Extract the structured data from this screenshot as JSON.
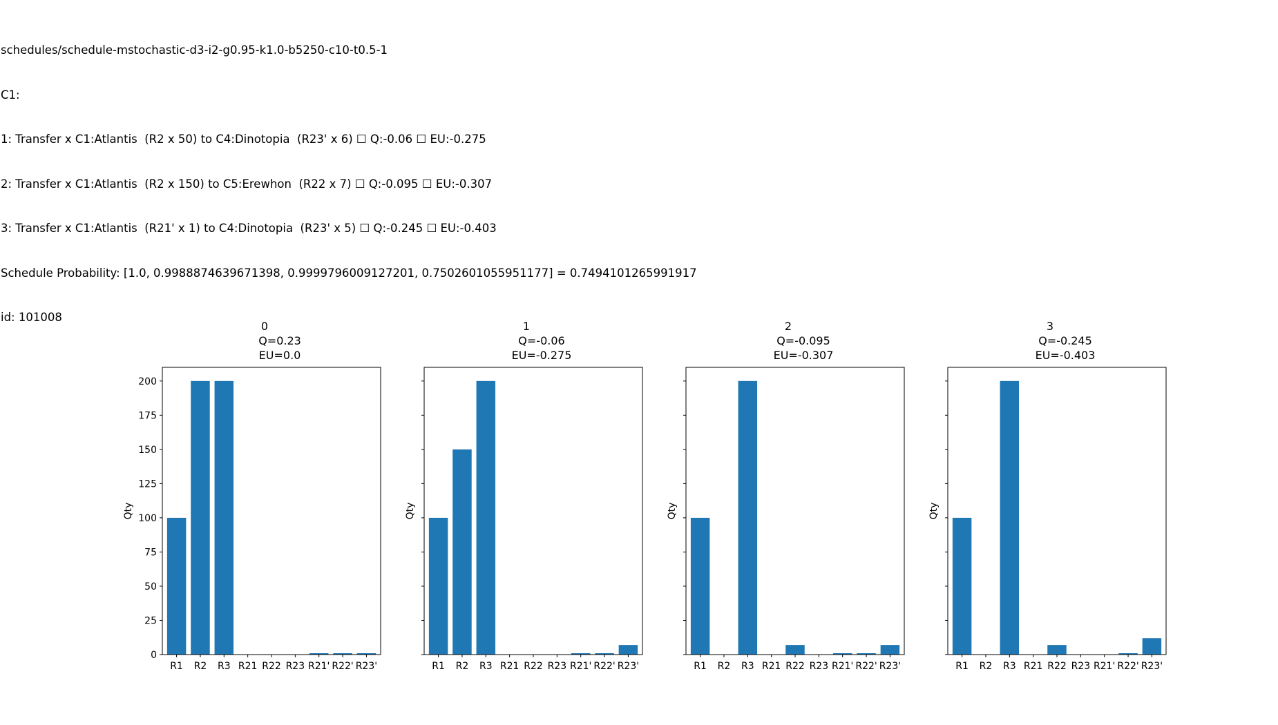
{
  "header": {
    "lines": [
      "schedules/schedule-mstochastic-d3-i2-g0.95-k1.0-b5250-c10-t0.5-1",
      "C1:",
      "1: Transfer x C1:Atlantis  (R2 x 50) to C4:Dinotopia  (R23' x 6) ☐ Q:-0.06 ☐ EU:-0.275",
      "2: Transfer x C1:Atlantis  (R2 x 150) to C5:Erewhon  (R22 x 7) ☐ Q:-0.095 ☐ EU:-0.307",
      "3: Transfer x C1:Atlantis  (R21' x 1) to C4:Dinotopia  (R23' x 5) ☐ Q:-0.245 ☐ EU:-0.403",
      "Schedule Probability: [1.0, 0.9988874639671398, 0.9999796009127201, 0.7502601055951177] = 0.7494101265991917",
      "id: 101008"
    ]
  },
  "colors": {
    "bar": "#1f77b4",
    "axis": "#000000",
    "background": "#ffffff"
  },
  "chart_data": [
    {
      "type": "bar",
      "title": "0",
      "q_label": "Q=0.23",
      "eu_label": "EU=0.0",
      "categories": [
        "R1",
        "R2",
        "R3",
        "R21",
        "R22",
        "R23",
        "R21'",
        "R22'",
        "R23'"
      ],
      "values": [
        100,
        200,
        200,
        0,
        0,
        0,
        1,
        1,
        1
      ],
      "xlabel": "",
      "ylabel": "Qty",
      "ylim": [
        0,
        210
      ],
      "yticks": [
        0,
        25,
        50,
        75,
        100,
        125,
        150,
        175,
        200
      ],
      "show_ytick_labels": true,
      "grid": false
    },
    {
      "type": "bar",
      "title": "1",
      "q_label": "Q=-0.06",
      "eu_label": "EU=-0.275",
      "categories": [
        "R1",
        "R2",
        "R3",
        "R21",
        "R22",
        "R23",
        "R21'",
        "R22'",
        "R23'"
      ],
      "values": [
        100,
        150,
        200,
        0,
        0,
        0,
        1,
        1,
        7
      ],
      "xlabel": "",
      "ylabel": "Qty",
      "ylim": [
        0,
        210
      ],
      "yticks": [
        0,
        25,
        50,
        75,
        100,
        125,
        150,
        175,
        200
      ],
      "show_ytick_labels": false,
      "grid": false
    },
    {
      "type": "bar",
      "title": "2",
      "q_label": "Q=-0.095",
      "eu_label": "EU=-0.307",
      "categories": [
        "R1",
        "R2",
        "R3",
        "R21",
        "R22",
        "R23",
        "R21'",
        "R22'",
        "R23'"
      ],
      "values": [
        100,
        0,
        200,
        0,
        7,
        0,
        1,
        1,
        7
      ],
      "xlabel": "",
      "ylabel": "Qty",
      "ylim": [
        0,
        210
      ],
      "yticks": [
        0,
        25,
        50,
        75,
        100,
        125,
        150,
        175,
        200
      ],
      "show_ytick_labels": false,
      "grid": false
    },
    {
      "type": "bar",
      "title": "3",
      "q_label": "Q=-0.245",
      "eu_label": "EU=-0.403",
      "categories": [
        "R1",
        "R2",
        "R3",
        "R21",
        "R22",
        "R23",
        "R21'",
        "R22'",
        "R23'"
      ],
      "values": [
        100,
        0,
        200,
        0,
        7,
        0,
        0,
        1,
        12
      ],
      "xlabel": "",
      "ylabel": "Qty",
      "ylim": [
        0,
        210
      ],
      "yticks": [
        0,
        25,
        50,
        75,
        100,
        125,
        150,
        175,
        200
      ],
      "show_ytick_labels": false,
      "grid": false
    }
  ]
}
